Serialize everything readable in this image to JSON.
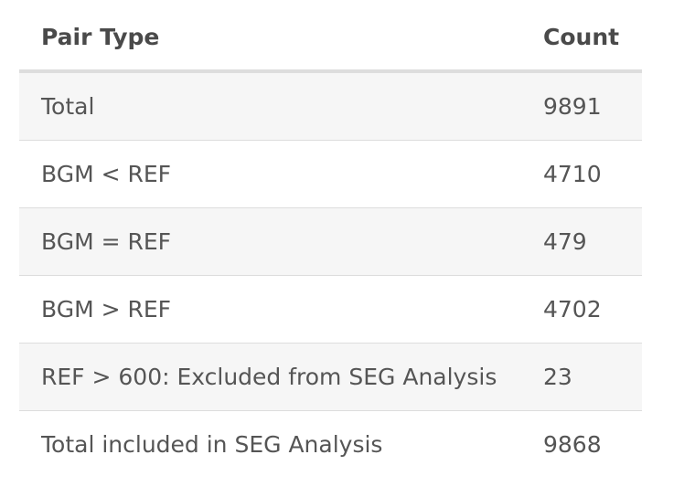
{
  "table": {
    "headers": {
      "pair_type": "Pair Type",
      "count": "Count"
    },
    "rows": [
      {
        "pair_type": "Total",
        "count": "9891"
      },
      {
        "pair_type": "BGM < REF",
        "count": "4710"
      },
      {
        "pair_type": "BGM = REF",
        "count": "479"
      },
      {
        "pair_type": "BGM > REF",
        "count": "4702"
      },
      {
        "pair_type": "REF > 600: Excluded from SEG Analysis",
        "count": "23"
      },
      {
        "pair_type": "Total included in SEG Analysis",
        "count": "9868"
      }
    ]
  },
  "colors": {
    "striped_row": "#f6f6f6",
    "border": "#dddddd",
    "text": "#4a4a4a"
  }
}
